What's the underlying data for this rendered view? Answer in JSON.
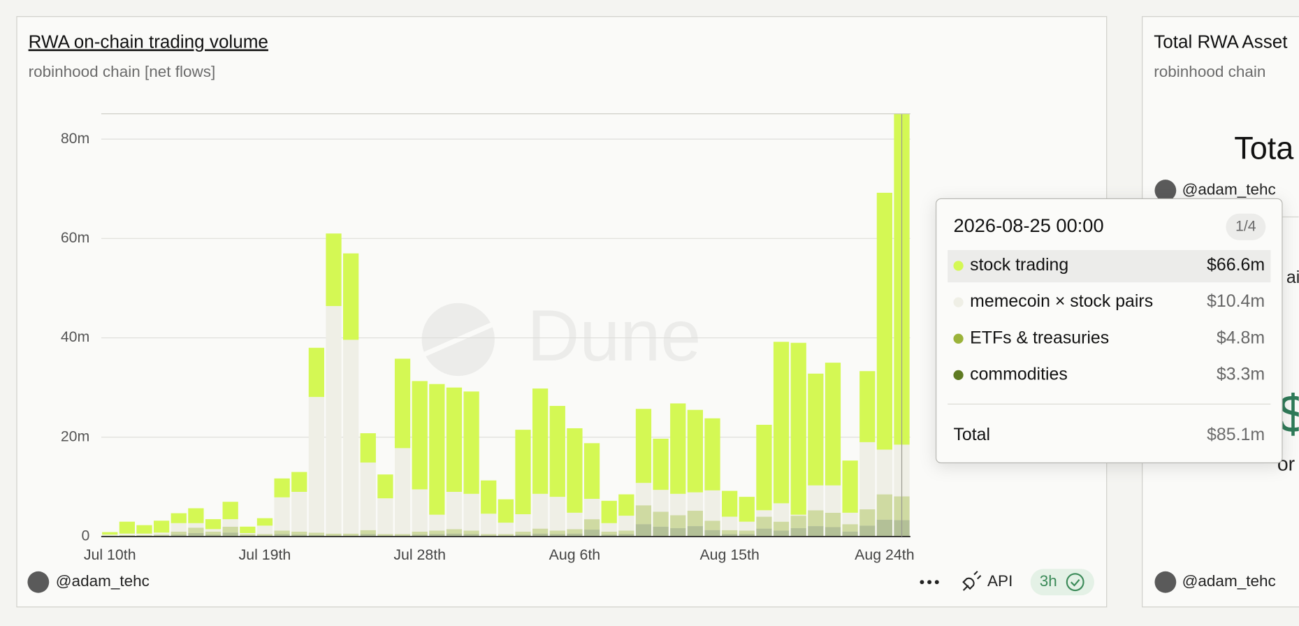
{
  "chart_data": {
    "type": "stacked-bar",
    "title": "RWA on-chain trading volume",
    "subtitle": "robinhood chain [net flows]",
    "watermark": "Dune",
    "categories": [
      "Jul 10th",
      null,
      null,
      null,
      null,
      null,
      null,
      null,
      null,
      "Jul 19th",
      null,
      null,
      null,
      null,
      null,
      null,
      null,
      null,
      "Jul 28th",
      null,
      null,
      null,
      null,
      null,
      null,
      null,
      null,
      "Aug 6th",
      null,
      null,
      null,
      null,
      null,
      null,
      null,
      null,
      "Aug 15th",
      null,
      null,
      null,
      null,
      null,
      null,
      null,
      null,
      "Aug 24th",
      null
    ],
    "series": [
      {
        "name": "stock trading",
        "color": "#d4f854",
        "values": [
          0.5,
          2.4,
          1.7,
          2.4,
          2.0,
          3.0,
          2.0,
          3.5,
          1.3,
          1.5,
          3.8,
          4.0,
          9.9,
          14.6,
          17.4,
          5.9,
          4.8,
          18.0,
          21.8,
          26.3,
          21.0,
          20.6,
          6.7,
          4.7,
          17.0,
          21.2,
          18.3,
          17.0,
          11.2,
          4.5,
          4.3,
          14.9,
          10.3,
          18.2,
          16.6,
          14.5,
          5.2,
          5.0,
          17.2,
          32.5,
          34.6,
          22.5,
          24.7,
          10.5,
          14.3,
          51.7,
          66.6
        ]
      },
      {
        "name": "memecoin × stock pairs",
        "color": "#efefe6",
        "values": [
          0.2,
          0.3,
          0.3,
          0.4,
          1.7,
          0.9,
          0.5,
          1.5,
          0.2,
          1.7,
          6.7,
          8.0,
          27.3,
          45.8,
          39.0,
          13.6,
          7.2,
          17.3,
          8.5,
          3.2,
          7.5,
          7.4,
          4.1,
          2.3,
          3.5,
          7.0,
          6.8,
          3.3,
          4.1,
          1.7,
          3.0,
          4.5,
          4.4,
          4.3,
          3.7,
          6.1,
          2.7,
          1.8,
          1.3,
          3.7,
          0.2,
          5.0,
          5.5,
          2.3,
          13.5,
          9.0,
          10.4
        ]
      },
      {
        "name": "ETFs & treasuries",
        "color": "#9bb33a",
        "values": [
          0.1,
          0.2,
          0.2,
          0.2,
          0.6,
          1.1,
          0.6,
          1.2,
          0.3,
          0.3,
          0.7,
          0.6,
          0.5,
          0.4,
          0.4,
          0.8,
          0.3,
          0.3,
          0.6,
          0.7,
          0.9,
          0.7,
          0.3,
          0.3,
          0.6,
          1.0,
          0.7,
          0.9,
          2.1,
          0.6,
          0.7,
          3.8,
          3.0,
          2.6,
          3.1,
          1.9,
          0.8,
          0.7,
          2.4,
          1.8,
          2.5,
          3.2,
          2.9,
          1.5,
          3.3,
          5.1,
          4.8
        ]
      },
      {
        "name": "commodities",
        "color": "#5e7a22",
        "values": [
          0.1,
          0.1,
          0.1,
          0.2,
          0.4,
          0.7,
          0.4,
          0.8,
          0.2,
          0.2,
          0.5,
          0.4,
          0.3,
          0.2,
          0.2,
          0.5,
          0.2,
          0.2,
          0.4,
          0.5,
          0.6,
          0.5,
          0.2,
          0.2,
          0.4,
          0.6,
          0.5,
          0.6,
          1.4,
          0.4,
          0.5,
          2.5,
          2.0,
          1.7,
          2.1,
          1.3,
          0.5,
          0.5,
          1.6,
          1.2,
          1.7,
          2.1,
          1.9,
          1.0,
          2.2,
          3.4,
          3.3
        ]
      }
    ],
    "ylim": [
      0,
      85
    ],
    "yticks": [
      0,
      {
        "value": 20,
        "label": "20m"
      },
      {
        "value": 40,
        "label": "40m"
      },
      {
        "value": 60,
        "label": "60m"
      },
      {
        "value": 80,
        "label": "80m"
      }
    ],
    "grid": true
  },
  "tooltip": {
    "title": "2026-08-25 00:00",
    "page": "1/4",
    "labels": [
      "$66.6m",
      "$10.4m",
      "$4.8m",
      "$3.3m"
    ],
    "total_name": "Total",
    "total_label": "$85.1m"
  },
  "footer": {
    "author": "@adam_tehc",
    "api": "API",
    "age": "3h"
  },
  "side_panel": {
    "title": "Total RWA Asset",
    "subtitle": "robinhood chain",
    "heading": "Tota",
    "author_top": "@adam_tehc",
    "fragment_1": "ai",
    "fragment_2": "$",
    "fragment_3": "or",
    "author_bottom": "@adam_tehc"
  }
}
